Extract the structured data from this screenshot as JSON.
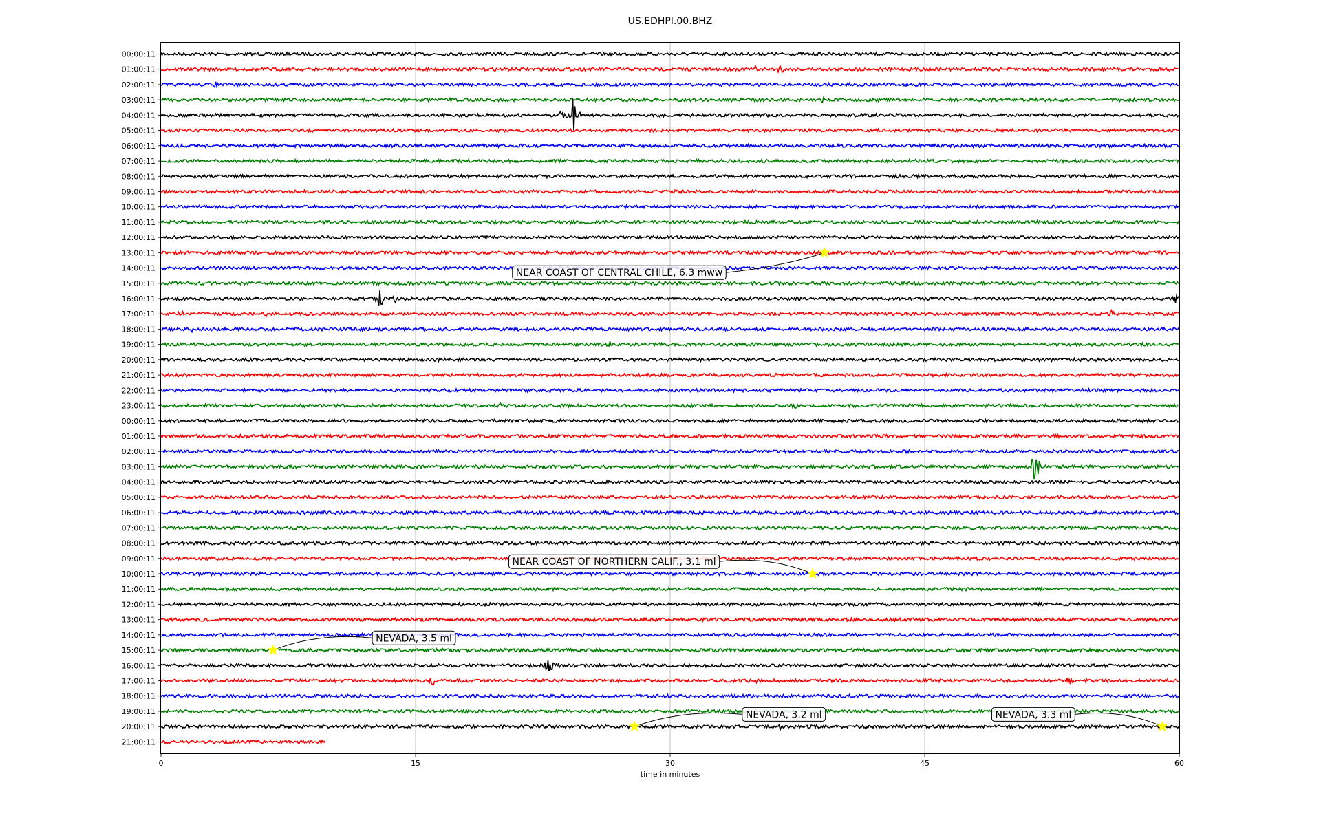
{
  "chart_data": {
    "type": "line",
    "title": "US.EDHPI.00.BHZ",
    "xlabel": "time in minutes",
    "xlim": [
      0,
      60
    ],
    "x_ticks": [
      "0",
      "15",
      "30",
      "45",
      "60"
    ],
    "x_tick_values": [
      0,
      15,
      30,
      45,
      60
    ],
    "grid": "vertical",
    "series_colors": [
      "#000000",
      "#ff0000",
      "#0000ff",
      "#008000"
    ],
    "row_labels": [
      "00:00:11",
      "01:00:11",
      "02:00:11",
      "03:00:11",
      "04:00:11",
      "05:00:11",
      "06:00:11",
      "07:00:11",
      "08:00:11",
      "09:00:11",
      "10:00:11",
      "11:00:11",
      "12:00:11",
      "13:00:11",
      "14:00:11",
      "15:00:11",
      "16:00:11",
      "17:00:11",
      "18:00:11",
      "19:00:11",
      "20:00:11",
      "21:00:11",
      "22:00:11",
      "23:00:11",
      "00:00:11",
      "01:00:11",
      "02:00:11",
      "03:00:11",
      "04:00:11",
      "05:00:11",
      "06:00:11",
      "07:00:11",
      "08:00:11",
      "09:00:11",
      "10:00:11",
      "11:00:11",
      "12:00:11",
      "13:00:11",
      "14:00:11",
      "15:00:11",
      "16:00:11",
      "17:00:11",
      "18:00:11",
      "19:00:11",
      "20:00:11",
      "21:00:11"
    ],
    "last_row_end_minute": 9.7,
    "signal_bursts": [
      {
        "row": 0,
        "minute": 6.7,
        "amp": 4
      },
      {
        "row": 0,
        "minute": 13.5,
        "amp": 4
      },
      {
        "row": 1,
        "minute": 35.0,
        "amp": 6
      },
      {
        "row": 1,
        "minute": 36.5,
        "amp": 8
      },
      {
        "row": 2,
        "minute": 3.2,
        "amp": 5
      },
      {
        "row": 2,
        "minute": 4.5,
        "amp": 4
      },
      {
        "row": 3,
        "minute": 32.0,
        "amp": 4
      },
      {
        "row": 3,
        "minute": 39.0,
        "amp": 5
      },
      {
        "row": 4,
        "minute": 24.3,
        "amp": 32
      },
      {
        "row": 4,
        "minute": 23.6,
        "amp": 8
      },
      {
        "row": 16,
        "minute": 12.9,
        "amp": 16
      },
      {
        "row": 16,
        "minute": 13.8,
        "amp": 6
      },
      {
        "row": 16,
        "minute": 16.7,
        "amp": 4
      },
      {
        "row": 16,
        "minute": 59.8,
        "amp": 8
      },
      {
        "row": 17,
        "minute": 1.2,
        "amp": 7
      },
      {
        "row": 17,
        "minute": 6.2,
        "amp": 4
      },
      {
        "row": 17,
        "minute": 56.0,
        "amp": 6
      },
      {
        "row": 18,
        "minute": 1.8,
        "amp": 5
      },
      {
        "row": 18,
        "minute": 21.0,
        "amp": 6
      },
      {
        "row": 19,
        "minute": 26.4,
        "amp": 6
      },
      {
        "row": 20,
        "minute": 3.0,
        "amp": 4
      },
      {
        "row": 20,
        "minute": 8.3,
        "amp": 5
      },
      {
        "row": 20,
        "minute": 10.2,
        "amp": 4
      },
      {
        "row": 21,
        "minute": 36.2,
        "amp": 6
      },
      {
        "row": 22,
        "minute": 22.9,
        "amp": 4
      },
      {
        "row": 23,
        "minute": 20.0,
        "amp": 4
      },
      {
        "row": 23,
        "minute": 37.3,
        "amp": 6
      },
      {
        "row": 27,
        "minute": 51.5,
        "amp": 30
      },
      {
        "row": 27,
        "minute": 50.6,
        "amp": 6
      },
      {
        "row": 40,
        "minute": 22.8,
        "amp": 22
      },
      {
        "row": 40,
        "minute": 23.5,
        "amp": 7
      },
      {
        "row": 41,
        "minute": 16.0,
        "amp": 8
      },
      {
        "row": 41,
        "minute": 35.0,
        "amp": 6
      },
      {
        "row": 41,
        "minute": 53.5,
        "amp": 8
      },
      {
        "row": 44,
        "minute": 36.5,
        "amp": 6
      },
      {
        "row": 44,
        "minute": 41.5,
        "amp": 4
      }
    ],
    "events": [
      {
        "label": "NEAR COAST OF CENTRAL CHILE, 6.3 mww",
        "row": 13,
        "minute": 39.1,
        "label_row": 14.3,
        "label_minute": 27.0
      },
      {
        "label": "NEAR COAST OF NORTHERN CALIF., 3.1 ml",
        "row": 34,
        "minute": 38.4,
        "label_row": 33.2,
        "label_minute": 26.7
      },
      {
        "label": "NEVADA, 3.5 ml",
        "row": 39,
        "minute": 6.6,
        "label_row": 38.2,
        "label_minute": 14.9
      },
      {
        "label": "NEVADA, 3.2 ml",
        "row": 44,
        "minute": 27.9,
        "label_row": 43.2,
        "label_minute": 36.7
      },
      {
        "label": "NEVADA, 3.3 ml",
        "row": 44,
        "minute": 59.0,
        "label_row": 43.2,
        "label_minute": 51.4
      }
    ],
    "event_marker_color": "#ffff00"
  }
}
